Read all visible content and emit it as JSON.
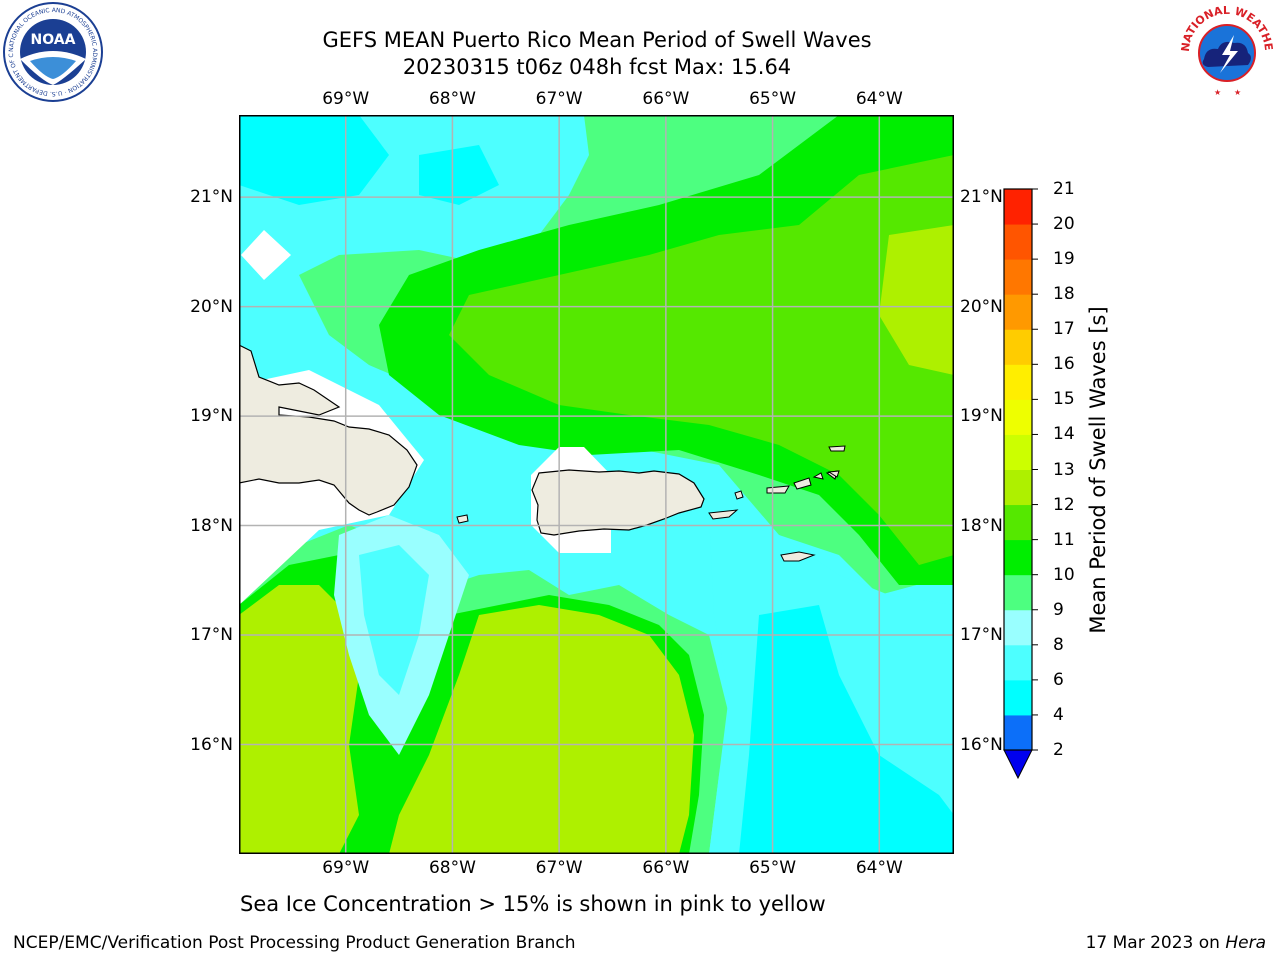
{
  "header": {
    "title_line1": "GEFS MEAN Puerto Rico Mean Period of Swell Waves",
    "title_line2": "20230315 t06z 048h fcst   Max: 15.64"
  },
  "logos": {
    "left": {
      "name": "NOAA",
      "ring_text": "NATIONAL OCEANIC AND ATMOSPHERIC ADMINISTRATION · U.S. DEPARTMENT OF COMMERCE",
      "center_text": "NOAA",
      "color": "#1b3f93"
    },
    "right": {
      "name": "National Weather Service",
      "ring_text": "NATIONAL WEATHER SERVICE",
      "color": "#d92027"
    }
  },
  "map": {
    "lon_ticks": [
      "69°W",
      "68°W",
      "67°W",
      "66°W",
      "65°W",
      "64°W"
    ],
    "lat_ticks": [
      "21°N",
      "20°N",
      "19°N",
      "18°N",
      "17°N",
      "16°N"
    ],
    "lon_range": [
      -70.0,
      -63.3
    ],
    "lat_range": [
      15.0,
      21.75
    ],
    "land_color": "#eeece0",
    "no_data_color": "#ffffff",
    "grid_color": "#b3b3b3"
  },
  "colorbar": {
    "title": "Mean Period of Swell Waves [s]",
    "levels": [
      2,
      4,
      6,
      8,
      9,
      10,
      11,
      12,
      13,
      14,
      15,
      16,
      17,
      18,
      19,
      20,
      21
    ],
    "labels": [
      "2",
      "4",
      "6",
      "8",
      "9",
      "10",
      "11",
      "12",
      "13",
      "14",
      "15",
      "16",
      "17",
      "18",
      "19",
      "20",
      "21"
    ],
    "colors": [
      "#0c6ff9",
      "#00ffff",
      "#4dffff",
      "#99ffff",
      "#4dff80",
      "#00ee00",
      "#55e800",
      "#aef000",
      "#ccff00",
      "#eeff00",
      "#ffee00",
      "#ffcc00",
      "#ff9900",
      "#ff7700",
      "#ff5500",
      "#ff2200"
    ],
    "extend_low_color": "#0000ee"
  },
  "footer": {
    "note": "Sea Ice Concentration > 15% is shown in pink to yellow",
    "credit": "NCEP/EMC/Verification Post Processing Product Generation Branch",
    "date": "17 Mar 2023 on",
    "machine": "Hera"
  }
}
